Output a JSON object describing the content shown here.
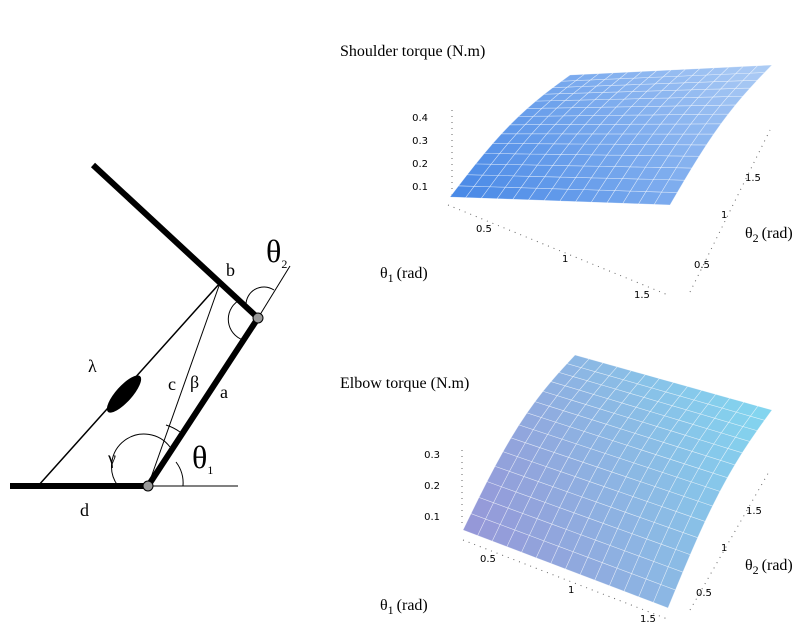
{
  "diagram": {
    "labels": {
      "theta2": {
        "symbol": "θ",
        "subscript": "2"
      },
      "b": "b",
      "lambda": "λ",
      "c": "c",
      "beta": "β",
      "a": "a",
      "gamma": "γ",
      "theta1": {
        "symbol": "θ",
        "subscript": "1"
      },
      "d": "d"
    }
  },
  "plots": [
    {
      "title": "Shoulder torque (N.m)",
      "z_ticks": [
        "0.4",
        "0.3",
        "0.2",
        "0.1"
      ],
      "x_axis": {
        "symbol": "θ",
        "subscript": "1",
        "unit": "(rad)",
        "ticks": [
          "0.5",
          "1",
          "1.5"
        ]
      },
      "y_axis": {
        "symbol": "θ",
        "subscript": "2",
        "unit": "(rad)",
        "ticks": [
          "0.5",
          "1",
          "1.5"
        ]
      }
    },
    {
      "title": "Elbow torque (N.m)",
      "z_ticks": [
        "0.3",
        "0.2",
        "0.1"
      ],
      "x_axis": {
        "symbol": "θ",
        "subscript": "1",
        "unit": "(rad)",
        "ticks": [
          "0.5",
          "1",
          "1.5"
        ]
      },
      "y_axis": {
        "symbol": "θ",
        "subscript": "2",
        "unit": "(rad)",
        "ticks": [
          "0.5",
          "1",
          "1.5"
        ]
      }
    }
  ]
}
